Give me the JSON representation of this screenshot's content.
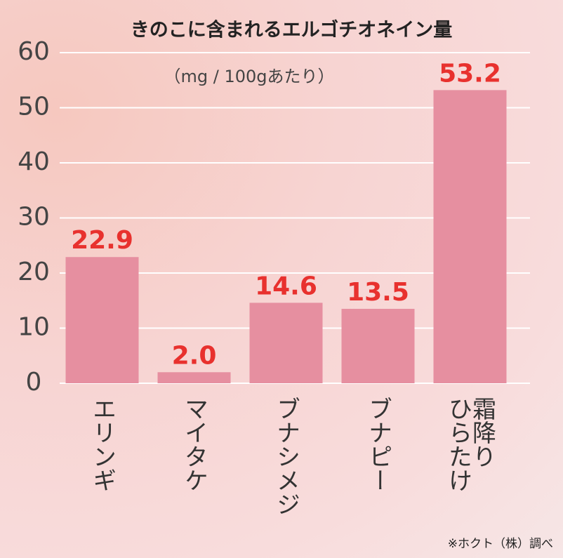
{
  "chart_data": {
    "type": "bar",
    "title": "きのこに含まれるエルゴチオネイン量",
    "subtitle": "（mg / 100gあたり）",
    "categories": [
      "エリンギ",
      "マイタケ",
      "ブナシメジ",
      "ブナピー",
      "霜降り\nひらたけ"
    ],
    "values": [
      22.9,
      2,
      14.6,
      13.5,
      53.2
    ],
    "value_labels": [
      "22.9",
      "2.0",
      "14.6",
      "13.5",
      "53.2"
    ],
    "color": "#e68fa0",
    "label_color": "#e8312e",
    "ylim": [
      0,
      60
    ],
    "yticks": [
      0,
      10,
      20,
      30,
      40,
      50,
      60
    ],
    "grid": true,
    "note": "※ホクト（株）調べ"
  }
}
